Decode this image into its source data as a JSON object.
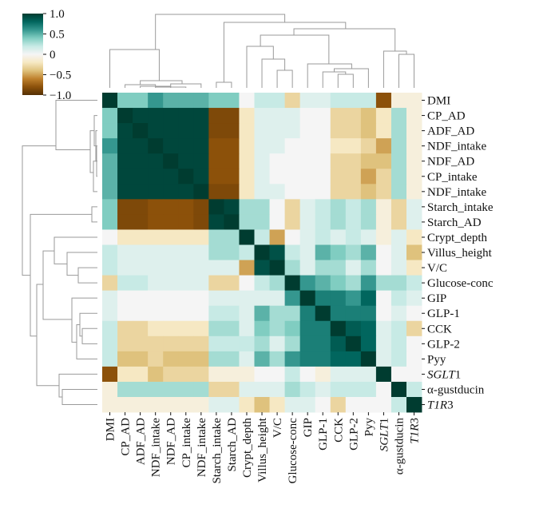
{
  "chart_data": {
    "type": "heatmap",
    "title": "",
    "subtitle": "",
    "row_labels": [
      {
        "text": "DMI",
        "italic": false
      },
      {
        "text": "CP_AD",
        "italic": false
      },
      {
        "text": "ADF_AD",
        "italic": false
      },
      {
        "text": "NDF_intake",
        "italic": false
      },
      {
        "text": "NDF_AD",
        "italic": false
      },
      {
        "text": "CP_intake",
        "italic": false
      },
      {
        "text": "NDF_intake",
        "italic": false
      },
      {
        "text": "Starch_intake",
        "italic": false
      },
      {
        "text": "Starch_AD",
        "italic": false
      },
      {
        "text": "Crypt_depth",
        "italic": false
      },
      {
        "text": "Villus_height",
        "italic": false
      },
      {
        "text": "V/C",
        "italic": false
      },
      {
        "text": "Glucose-conc",
        "italic": false
      },
      {
        "text": "GIP",
        "italic": false
      },
      {
        "text": "GLP-1",
        "italic": false
      },
      {
        "text": "CCK",
        "italic": false
      },
      {
        "text": "GLP-2",
        "italic": false
      },
      {
        "text": "Pyy",
        "italic": false
      },
      {
        "text": "SGLT1",
        "italic": true
      },
      {
        "text": "α-gustducin",
        "italic": false
      },
      {
        "text": "T1R3",
        "italic": true
      }
    ],
    "col_labels": [
      {
        "text": "DMI",
        "italic": false
      },
      {
        "text": "CP_AD",
        "italic": false
      },
      {
        "text": "ADF_AD",
        "italic": false
      },
      {
        "text": "NDF_intake",
        "italic": false
      },
      {
        "text": "NDF_AD",
        "italic": false
      },
      {
        "text": "CP_intake",
        "italic": false
      },
      {
        "text": "NDF_intake",
        "italic": false
      },
      {
        "text": "Starch_intake",
        "italic": false
      },
      {
        "text": "Starch_AD",
        "italic": false
      },
      {
        "text": "Crypt_depth",
        "italic": false
      },
      {
        "text": "Villus_height",
        "italic": false
      },
      {
        "text": "V/C",
        "italic": false
      },
      {
        "text": "Glucose-conc",
        "italic": false
      },
      {
        "text": "GIP",
        "italic": false
      },
      {
        "text": "GLP-1",
        "italic": false
      },
      {
        "text": "CCK",
        "italic": false
      },
      {
        "text": "GLP-2",
        "italic": false
      },
      {
        "text": "Pyy",
        "italic": false
      },
      {
        "text": "SGLT1",
        "italic": true
      },
      {
        "text": "α-gustducin",
        "italic": false
      },
      {
        "text": "T1R3",
        "italic": true
      }
    ],
    "values": [
      [
        1.0,
        0.4,
        0.4,
        0.6,
        0.5,
        0.5,
        0.5,
        0.4,
        0.4,
        0.0,
        0.2,
        0.2,
        -0.3,
        0.1,
        0.1,
        0.2,
        0.2,
        0.2,
        -0.8,
        -0.1,
        -0.1
      ],
      [
        0.4,
        1.0,
        0.95,
        0.95,
        0.95,
        0.95,
        0.95,
        -0.85,
        -0.85,
        -0.2,
        0.1,
        0.1,
        0.1,
        0.0,
        0.0,
        -0.3,
        -0.3,
        -0.4,
        -0.2,
        0.3,
        -0.1
      ],
      [
        0.4,
        0.95,
        1.0,
        0.95,
        0.95,
        0.95,
        0.95,
        -0.85,
        -0.85,
        -0.2,
        0.1,
        0.1,
        0.1,
        0.0,
        0.0,
        -0.3,
        -0.3,
        -0.4,
        -0.2,
        0.3,
        -0.1
      ],
      [
        0.6,
        0.95,
        0.95,
        1.0,
        0.95,
        0.95,
        0.95,
        -0.8,
        -0.8,
        -0.2,
        0.1,
        0.1,
        0.0,
        0.0,
        0.0,
        -0.2,
        -0.2,
        -0.3,
        -0.5,
        0.3,
        -0.1
      ],
      [
        0.5,
        0.95,
        0.95,
        0.95,
        1.0,
        0.95,
        0.95,
        -0.8,
        -0.8,
        -0.2,
        0.1,
        0.0,
        0.0,
        0.0,
        0.0,
        -0.3,
        -0.3,
        -0.4,
        -0.4,
        0.3,
        -0.1
      ],
      [
        0.5,
        0.95,
        0.95,
        0.95,
        0.95,
        1.0,
        0.95,
        -0.8,
        -0.8,
        -0.2,
        0.1,
        0.0,
        0.0,
        0.0,
        0.0,
        -0.3,
        -0.3,
        -0.5,
        -0.3,
        0.3,
        -0.1
      ],
      [
        0.5,
        0.95,
        0.95,
        0.95,
        0.95,
        0.95,
        1.0,
        -0.85,
        -0.85,
        -0.2,
        0.1,
        0.1,
        0.0,
        0.0,
        0.0,
        -0.3,
        -0.3,
        -0.4,
        -0.3,
        0.3,
        -0.1
      ],
      [
        0.4,
        -0.85,
        -0.85,
        -0.8,
        -0.8,
        -0.8,
        -0.85,
        1.0,
        0.95,
        0.3,
        0.3,
        0.0,
        -0.3,
        0.1,
        0.2,
        0.3,
        0.2,
        0.3,
        -0.1,
        -0.3,
        0.1
      ],
      [
        0.4,
        -0.85,
        -0.85,
        -0.8,
        -0.8,
        -0.8,
        -0.85,
        0.95,
        1.0,
        0.3,
        0.3,
        0.0,
        -0.3,
        0.1,
        0.2,
        0.3,
        0.2,
        0.3,
        -0.1,
        -0.3,
        0.1
      ],
      [
        0.0,
        -0.2,
        -0.2,
        -0.2,
        -0.2,
        -0.2,
        -0.2,
        0.3,
        0.3,
        1.0,
        0.2,
        -0.5,
        0.0,
        0.1,
        0.2,
        0.1,
        0.2,
        0.1,
        -0.1,
        0.1,
        -0.2
      ],
      [
        0.2,
        0.1,
        0.1,
        0.1,
        0.1,
        0.1,
        0.1,
        0.3,
        0.3,
        0.2,
        1.0,
        0.9,
        0.2,
        0.1,
        0.5,
        0.4,
        0.3,
        0.5,
        0.0,
        0.1,
        -0.4
      ],
      [
        0.2,
        0.1,
        0.1,
        0.1,
        0.1,
        0.1,
        0.1,
        0.1,
        0.1,
        -0.5,
        0.9,
        1.0,
        0.3,
        0.1,
        0.3,
        0.3,
        0.1,
        0.3,
        0.0,
        0.1,
        -0.2
      ],
      [
        -0.3,
        0.2,
        0.2,
        0.1,
        0.1,
        0.1,
        0.1,
        -0.3,
        -0.3,
        0.0,
        0.2,
        0.3,
        1.0,
        0.6,
        0.5,
        0.4,
        0.3,
        0.6,
        0.3,
        0.3,
        0.2
      ],
      [
        0.1,
        0.0,
        0.0,
        0.0,
        0.0,
        0.0,
        0.0,
        0.1,
        0.1,
        0.1,
        0.1,
        0.1,
        0.6,
        1.0,
        0.7,
        0.7,
        0.6,
        0.8,
        0.0,
        0.2,
        0.1
      ],
      [
        0.1,
        0.0,
        0.0,
        0.0,
        0.0,
        0.0,
        0.0,
        0.2,
        0.2,
        0.1,
        0.5,
        0.3,
        0.3,
        0.7,
        1.0,
        0.7,
        0.7,
        0.7,
        0.0,
        0.1,
        0.0
      ],
      [
        0.2,
        -0.3,
        -0.3,
        -0.2,
        -0.2,
        -0.2,
        -0.2,
        0.3,
        0.3,
        0.1,
        0.4,
        0.3,
        0.4,
        0.7,
        0.7,
        1.0,
        0.85,
        0.8,
        0.1,
        0.2,
        -0.3
      ],
      [
        0.2,
        -0.3,
        -0.3,
        -0.3,
        -0.3,
        -0.3,
        -0.3,
        0.2,
        0.2,
        0.2,
        0.3,
        0.1,
        0.3,
        0.7,
        0.7,
        0.85,
        1.0,
        0.8,
        0.1,
        0.2,
        0.0
      ],
      [
        0.2,
        -0.4,
        -0.4,
        -0.3,
        -0.4,
        -0.4,
        -0.4,
        0.3,
        0.3,
        0.1,
        0.5,
        0.3,
        0.6,
        0.7,
        0.7,
        0.8,
        0.8,
        1.0,
        0.1,
        0.2,
        0.0
      ],
      [
        -0.8,
        -0.2,
        -0.2,
        -0.4,
        -0.3,
        -0.3,
        -0.3,
        -0.1,
        -0.1,
        -0.1,
        0.0,
        0.0,
        0.2,
        0.0,
        -0.1,
        0.1,
        0.1,
        0.1,
        1.0,
        0.0,
        0.0
      ],
      [
        -0.1,
        0.3,
        0.3,
        0.3,
        0.3,
        0.3,
        0.3,
        -0.3,
        -0.3,
        0.1,
        0.1,
        0.1,
        0.3,
        0.2,
        0.1,
        0.2,
        0.2,
        0.2,
        0.0,
        1.0,
        0.2
      ],
      [
        -0.1,
        -0.1,
        -0.1,
        -0.1,
        -0.1,
        -0.1,
        -0.1,
        0.1,
        0.1,
        -0.2,
        -0.4,
        -0.2,
        0.1,
        0.1,
        0.0,
        -0.3,
        0.0,
        0.0,
        0.0,
        0.2,
        1.0
      ]
    ],
    "vmin": -1.0,
    "vmax": 1.0,
    "colorbar_ticks": [
      {
        "value": 1.0,
        "label": "1.0"
      },
      {
        "value": 0.5,
        "label": "0.5"
      },
      {
        "value": 0.0,
        "label": "0"
      },
      {
        "value": -0.5,
        "label": "−0.5"
      },
      {
        "value": -1.0,
        "label": "−1.0"
      }
    ],
    "colormap": [
      "#543005",
      "#8c510a",
      "#bf812d",
      "#dfc27d",
      "#f6e8c3",
      "#f5f5f5",
      "#c7eae5",
      "#80cdc1",
      "#35978f",
      "#01665e",
      "#003c30"
    ],
    "has_row_dendrogram": true,
    "has_col_dendrogram": true,
    "legend": "colorbar top-left"
  }
}
